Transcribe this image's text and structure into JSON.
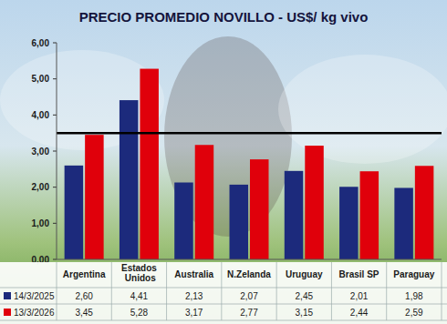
{
  "chart_data": {
    "type": "bar",
    "title": "PRECIO PROMEDIO NOVILLO - US$/ kg vivo",
    "categories": [
      "Argentina",
      "Estados Unidos",
      "Australia",
      "N.Zelanda",
      "Uruguay",
      "Brasil SP",
      "Paraguay"
    ],
    "series": [
      {
        "name": "14/3/2025",
        "color": "#1c2a7c",
        "values": [
          2.6,
          4.41,
          2.13,
          2.07,
          2.45,
          2.01,
          1.98
        ],
        "value_labels": [
          "2,60",
          "4,41",
          "2,13",
          "2,07",
          "2,45",
          "2,01",
          "1,98"
        ]
      },
      {
        "name": "13/3/2026",
        "color": "#e0000b",
        "values": [
          3.45,
          5.28,
          3.17,
          2.77,
          3.15,
          2.44,
          2.59
        ],
        "value_labels": [
          "3,45",
          "5,28",
          "3,17",
          "2,77",
          "3,15",
          "2,44",
          "2,59"
        ]
      }
    ],
    "ylim": [
      0,
      6
    ],
    "yticks": [
      {
        "value": 0,
        "label": "0,00"
      },
      {
        "value": 1,
        "label": "1,00"
      },
      {
        "value": 2,
        "label": "2,00"
      },
      {
        "value": 3,
        "label": "3,00"
      },
      {
        "value": 4,
        "label": "4,00"
      },
      {
        "value": 5,
        "label": "5,00"
      },
      {
        "value": 6,
        "label": "6,00"
      }
    ],
    "grid": false,
    "reference_line": 3.5,
    "legend": "bottom"
  }
}
